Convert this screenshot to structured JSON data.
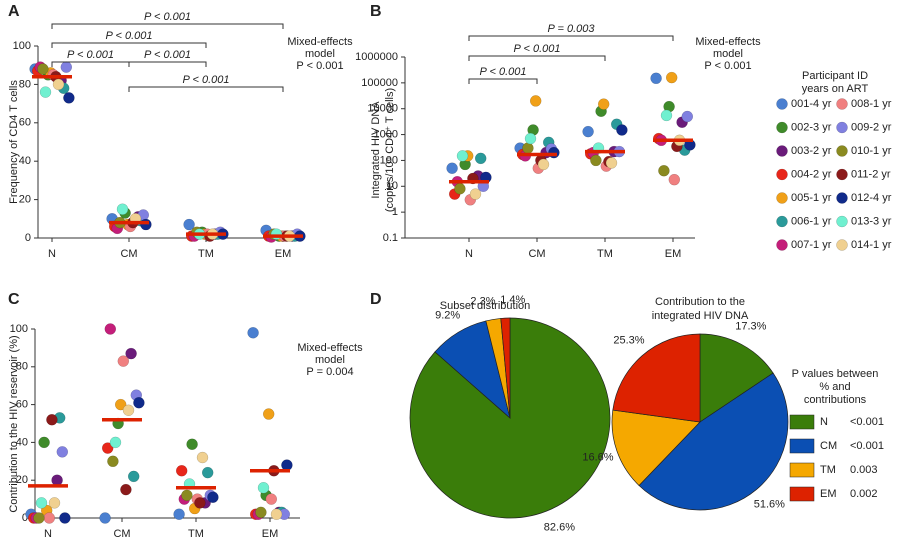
{
  "participants": {
    "title": [
      "Participant ID",
      "years on ART"
    ],
    "items": [
      {
        "name": "001-4 yr",
        "color": "#4a7fd0"
      },
      {
        "name": "002-3 yr",
        "color": "#3f8b2a"
      },
      {
        "name": "003-2 yr",
        "color": "#6a1b7a"
      },
      {
        "name": "004-2 yr",
        "color": "#e8261a"
      },
      {
        "name": "005-1 yr",
        "color": "#f0a018"
      },
      {
        "name": "006-1 yr",
        "color": "#2a9a9a"
      },
      {
        "name": "007-1 yr",
        "color": "#c41e7a"
      },
      {
        "name": "008-1 yr",
        "color": "#f08080"
      },
      {
        "name": "009-2 yr",
        "color": "#8080e0"
      },
      {
        "name": "010-1 yr",
        "color": "#8a8a20"
      },
      {
        "name": "011-2 yr",
        "color": "#8b1a1a"
      },
      {
        "name": "012-4 yr",
        "color": "#102a8a"
      },
      {
        "name": "013-3 yr",
        "color": "#70f0d0"
      },
      {
        "name": "014-1 yr",
        "color": "#f0d090"
      }
    ]
  },
  "chart_data": [
    {
      "type": "dotplot",
      "panel": "A",
      "ylabel": [
        "Frequency of CD4 T cells"
      ],
      "categories": [
        "N",
        "CM",
        "TM",
        "EM"
      ],
      "ylim": [
        0,
        100
      ],
      "yticks": [
        0,
        20,
        40,
        60,
        80,
        100
      ],
      "medians": [
        84,
        8,
        2,
        1
      ],
      "median_color": "#dd2200",
      "series": [
        {
          "values": [
            88,
            10,
            7,
            4
          ]
        },
        {
          "values": [
            85,
            13,
            3,
            1
          ]
        },
        {
          "values": [
            82,
            11,
            2,
            1
          ]
        },
        {
          "values": [
            87,
            6,
            1,
            1
          ]
        },
        {
          "values": [
            86,
            7,
            2,
            1
          ]
        },
        {
          "values": [
            78,
            9,
            2,
            1
          ]
        },
        {
          "values": [
            89,
            5,
            1,
            0.5
          ]
        },
        {
          "values": [
            85,
            6,
            2,
            1
          ]
        },
        {
          "values": [
            89,
            12,
            3,
            2
          ]
        },
        {
          "values": [
            88,
            8,
            3,
            2
          ]
        },
        {
          "values": [
            84,
            8,
            1,
            1
          ]
        },
        {
          "values": [
            73,
            7,
            2,
            1
          ]
        },
        {
          "values": [
            76,
            15,
            2,
            2
          ]
        },
        {
          "values": [
            80,
            10,
            2,
            1
          ]
        }
      ],
      "brackets": [
        {
          "from": 0,
          "to": 3,
          "label": "P < 0.001"
        },
        {
          "from": 0,
          "to": 2,
          "label": "P < 0.001"
        },
        {
          "from": 0,
          "to": 1,
          "label": "P < 0.001"
        },
        {
          "from": 1,
          "to": 2,
          "label": "P < 0.001"
        },
        {
          "from": 1,
          "to": 3,
          "label": "P < 0.001"
        }
      ],
      "note": [
        "Mixed-effects",
        "model",
        "P < 0.001"
      ]
    },
    {
      "type": "dotplot",
      "panel": "B",
      "log_scale": true,
      "ylabel": [
        "Integrated HIV DNA",
        "(copies/10⁶ CD4⁺ T cells)"
      ],
      "categories": [
        "N",
        "CM",
        "TM",
        "EM"
      ],
      "ylim": [
        0.1,
        1000000
      ],
      "yticks": [
        0.1,
        1,
        10,
        100,
        1000,
        10000,
        100000,
        1000000
      ],
      "medians": [
        15,
        170,
        220,
        600
      ],
      "median_color": "#dd2200",
      "series": [
        {
          "values": [
            50,
            300,
            1300,
            150000
          ]
        },
        {
          "values": [
            70,
            1500,
            8000,
            12000
          ]
        },
        {
          "values": [
            25,
            200,
            220,
            3000
          ]
        },
        {
          "values": [
            5,
            170,
            180,
            700
          ]
        },
        {
          "values": [
            150,
            20000,
            15000,
            160000
          ]
        },
        {
          "values": [
            120,
            500,
            2500,
            250
          ]
        },
        {
          "values": [
            15,
            150,
            200,
            600
          ]
        },
        {
          "values": [
            3,
            50,
            60,
            18
          ]
        },
        {
          "values": [
            10,
            280,
            220,
            5000
          ]
        },
        {
          "values": [
            8,
            300,
            100,
            40
          ]
        },
        {
          "values": [
            20,
            100,
            90,
            350
          ]
        },
        {
          "values": [
            22,
            200,
            1500,
            400
          ]
        },
        {
          "values": [
            150,
            700,
            300,
            5500
          ]
        },
        {
          "values": [
            5,
            70,
            80,
            600
          ]
        }
      ],
      "brackets": [
        {
          "from": 0,
          "to": 3,
          "label": "P = 0.003"
        },
        {
          "from": 0,
          "to": 2,
          "label": "P < 0.001"
        },
        {
          "from": 0,
          "to": 1,
          "label": "P < 0.001"
        }
      ],
      "note": [
        "Mixed-effects",
        "model",
        "P < 0.001"
      ]
    },
    {
      "type": "dotplot",
      "panel": "C",
      "ylabel": [
        "Contribution to the HIV reservoir (%)"
      ],
      "categories": [
        "N",
        "CM",
        "TM",
        "EM"
      ],
      "ylim": [
        0,
        100
      ],
      "yticks": [
        0,
        20,
        40,
        60,
        80,
        100
      ],
      "medians": [
        17,
        52,
        16,
        25
      ],
      "median_color": "#dd2200",
      "series": [
        {
          "values": [
            2,
            0,
            2,
            98
          ]
        },
        {
          "values": [
            40,
            50,
            39,
            12
          ]
        },
        {
          "values": [
            20,
            87,
            8,
            3
          ]
        },
        {
          "values": [
            0,
            37,
            25,
            2
          ]
        },
        {
          "values": [
            4,
            60,
            5,
            55
          ]
        },
        {
          "values": [
            53,
            22,
            24,
            3
          ]
        },
        {
          "values": [
            0,
            100,
            10,
            2
          ]
        },
        {
          "values": [
            0,
            83,
            10,
            10
          ]
        },
        {
          "values": [
            35,
            65,
            12,
            2
          ]
        },
        {
          "values": [
            0,
            30,
            12,
            3
          ]
        },
        {
          "values": [
            52,
            15,
            8,
            25
          ]
        },
        {
          "values": [
            0,
            61,
            11,
            28
          ]
        },
        {
          "values": [
            8,
            40,
            18,
            16
          ]
        },
        {
          "values": [
            8,
            57,
            32,
            2
          ]
        }
      ],
      "brackets": [],
      "note": [
        "Mixed-effects",
        "model",
        "P = 0.004"
      ]
    },
    {
      "type": "pie",
      "panel": "D",
      "title": [
        "Subset distribution"
      ],
      "categories": [
        "N",
        "CM",
        "TM",
        "EM"
      ],
      "colors": [
        "#3a7d0a",
        "#0b4fb3",
        "#f5a800",
        "#dd2200"
      ],
      "values": [
        82.6,
        9.2,
        2.3,
        1.4
      ],
      "value_labels": [
        "82.6%",
        "9.2%",
        "2.3%",
        "1.4%"
      ]
    },
    {
      "type": "pie",
      "title": [
        "Contribution to the",
        "integrated HIV DNA"
      ],
      "categories": [
        "N",
        "CM",
        "TM",
        "EM"
      ],
      "colors": [
        "#3a7d0a",
        "#0b4fb3",
        "#f5a800",
        "#dd2200"
      ],
      "values": [
        17.3,
        51.6,
        16.6,
        25.3
      ],
      "value_labels": [
        "17.3%",
        "51.6%",
        "16.6%",
        "25.3%"
      ],
      "legend": {
        "title": [
          "P values between",
          "% and",
          "contributions"
        ],
        "p_values": [
          "<0.001",
          "<0.001",
          "0.003",
          "0.002"
        ]
      }
    }
  ]
}
